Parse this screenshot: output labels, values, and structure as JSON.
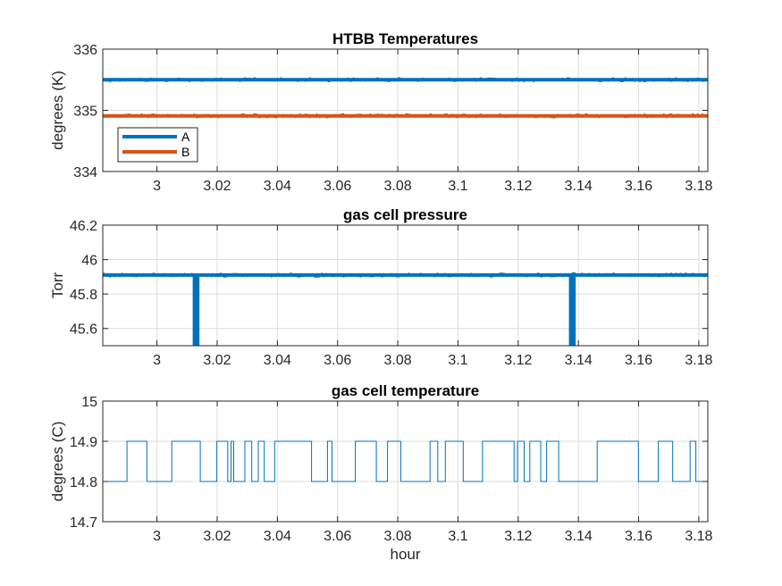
{
  "chart_data": [
    {
      "type": "line",
      "title": "HTBB Temperatures",
      "xlabel": "",
      "ylabel": "degrees (K)",
      "xlim": [
        2.982,
        3.183
      ],
      "ylim": [
        334,
        336
      ],
      "xticks": [
        3,
        3.02,
        3.04,
        3.06,
        3.08,
        3.1,
        3.12,
        3.14,
        3.16,
        3.18
      ],
      "xtick_labels": [
        "3",
        "3.02",
        "3.04",
        "3.06",
        "3.08",
        "3.1",
        "3.12",
        "3.14",
        "3.16",
        "3.18"
      ],
      "yticks": [
        334,
        335,
        336
      ],
      "ytick_labels": [
        "334",
        "335",
        "336"
      ],
      "grid": true,
      "legend": "bottom-left",
      "series": [
        {
          "name": "A",
          "color": "#0072BD",
          "x": [
            2.982,
            3.183
          ],
          "y": [
            335.5,
            335.5
          ]
        },
        {
          "name": "B",
          "color": "#D95319",
          "x": [
            2.982,
            3.183
          ],
          "y": [
            334.91,
            334.91
          ]
        }
      ]
    },
    {
      "type": "line",
      "title": "gas cell pressure",
      "xlabel": "",
      "ylabel": "Torr",
      "xlim": [
        2.982,
        3.183
      ],
      "ylim": [
        45.5,
        46.2
      ],
      "xticks": [
        3,
        3.02,
        3.04,
        3.06,
        3.08,
        3.1,
        3.12,
        3.14,
        3.16,
        3.18
      ],
      "xtick_labels": [
        "3",
        "3.02",
        "3.04",
        "3.06",
        "3.08",
        "3.1",
        "3.12",
        "3.14",
        "3.16",
        "3.18"
      ],
      "yticks": [
        45.6,
        45.8,
        46,
        46.2
      ],
      "ytick_labels": [
        "45.6",
        "45.8",
        "46",
        "46.2"
      ],
      "grid": true,
      "series": [
        {
          "color": "#0072BD",
          "x": [
            2.982,
            3.0125,
            3.0125,
            3.0135,
            3.0135,
            3.1375,
            3.1375,
            3.1385,
            3.1385,
            3.183
          ],
          "y": [
            45.91,
            45.91,
            45.5,
            45.5,
            45.91,
            45.91,
            45.5,
            45.5,
            45.91,
            45.91
          ]
        }
      ]
    },
    {
      "type": "line",
      "title": "gas cell temperature",
      "xlabel": "hour",
      "ylabel": "degrees (C)",
      "xlim": [
        2.982,
        3.183
      ],
      "ylim": [
        14.7,
        15
      ],
      "xticks": [
        3,
        3.02,
        3.04,
        3.06,
        3.08,
        3.1,
        3.12,
        3.14,
        3.16,
        3.18
      ],
      "xtick_labels": [
        "3",
        "3.02",
        "3.04",
        "3.06",
        "3.08",
        "3.1",
        "3.12",
        "3.14",
        "3.16",
        "3.18"
      ],
      "yticks": [
        14.7,
        14.8,
        14.9,
        15
      ],
      "ytick_labels": [
        "14.7",
        "14.8",
        "14.9",
        "15"
      ],
      "grid": true,
      "series": [
        {
          "color": "#0072BD",
          "levels": [
            14.8,
            14.9
          ]
        }
      ]
    }
  ]
}
